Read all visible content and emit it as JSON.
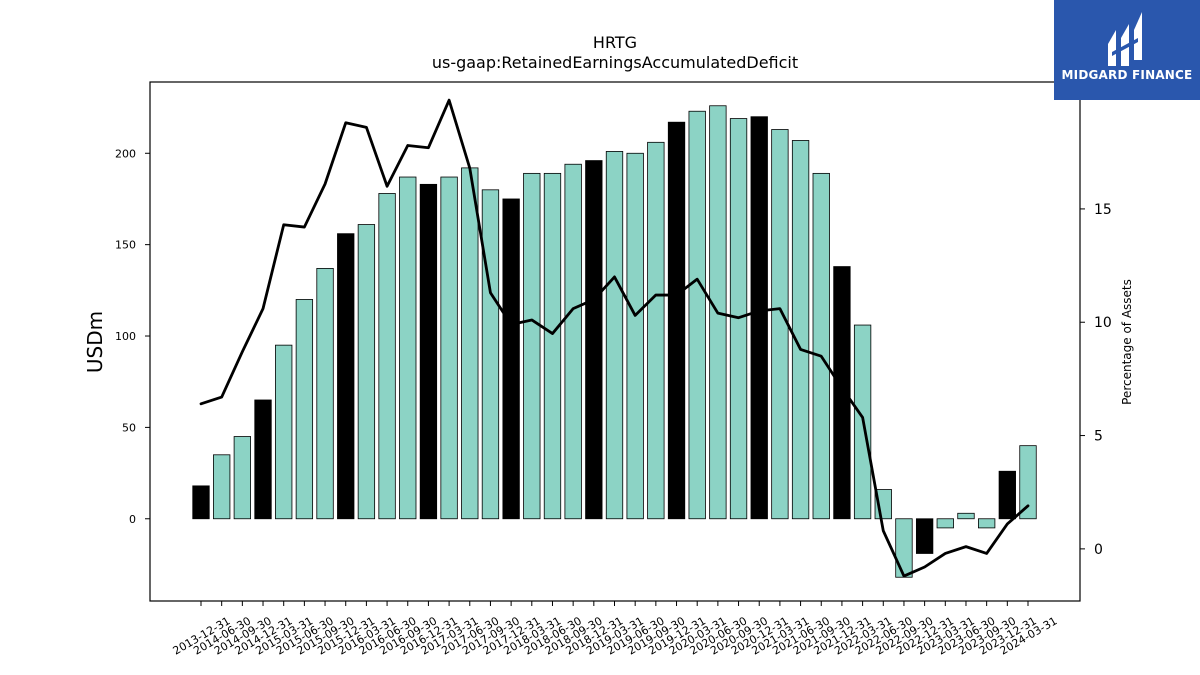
{
  "logo": {
    "text": "MIDGARD FINANCE"
  },
  "colors": {
    "bar": "#8cd3c5",
    "highlight": "#000000",
    "line": "#000000"
  },
  "chart_data": {
    "type": "bar",
    "title": "HRTG",
    "subtitle": "us-gaap:RetainedEarningsAccumulatedDeficit",
    "ylabel": "USDm",
    "y2label": "Percentage of Assets",
    "ylim": [
      -45,
      239
    ],
    "y2lim": [
      -2.3,
      20.6
    ],
    "yticks": [
      0,
      50,
      100,
      150,
      200
    ],
    "y2ticks": [
      0,
      5,
      10,
      15
    ],
    "categories": [
      "2013-12-31",
      "2014-06-30",
      "2014-09-30",
      "2014-12-31",
      "2015-03-31",
      "2015-06-30",
      "2015-09-30",
      "2015-12-31",
      "2016-03-31",
      "2016-06-30",
      "2016-09-30",
      "2016-12-31",
      "2017-03-31",
      "2017-06-30",
      "2017-09-30",
      "2017-12-31",
      "2018-03-31",
      "2018-06-30",
      "2018-09-30",
      "2018-12-31",
      "2019-03-31",
      "2019-06-30",
      "2019-09-30",
      "2019-12-31",
      "2020-03-31",
      "2020-06-30",
      "2020-09-30",
      "2020-12-31",
      "2021-03-31",
      "2021-06-30",
      "2021-09-30",
      "2021-12-31",
      "2022-03-31",
      "2022-06-30",
      "2022-09-30",
      "2022-12-31",
      "2023-03-31",
      "2023-06-30",
      "2023-09-30",
      "2023-12-31",
      "2024-03-31"
    ],
    "series": [
      {
        "values": [
          18,
          35,
          45,
          65,
          95,
          120,
          137,
          156,
          161,
          178,
          187,
          183,
          187,
          192,
          180,
          175,
          189,
          189,
          194,
          196,
          201,
          200,
          206,
          217,
          223,
          226,
          219,
          220,
          213,
          207,
          189,
          138,
          106,
          16,
          -32,
          -19,
          -5,
          3,
          -5,
          26,
          40
        ],
        "highlight": [
          true,
          false,
          false,
          true,
          false,
          false,
          false,
          true,
          false,
          false,
          false,
          true,
          false,
          false,
          false,
          true,
          false,
          false,
          false,
          true,
          false,
          false,
          false,
          true,
          false,
          false,
          false,
          true,
          false,
          false,
          false,
          true,
          false,
          false,
          false,
          true,
          false,
          false,
          false,
          true,
          false
        ]
      },
      {
        "axis": "right",
        "values": [
          6.4,
          6.7,
          8.7,
          10.6,
          14.3,
          14.2,
          16.1,
          18.8,
          18.6,
          16.0,
          17.8,
          17.7,
          19.8,
          16.8,
          11.3,
          9.9,
          10.1,
          9.5,
          10.6,
          11.0,
          12.0,
          10.3,
          11.2,
          11.2,
          11.9,
          10.4,
          10.2,
          10.5,
          10.6,
          8.8,
          8.5,
          7.1,
          5.8,
          0.8,
          -1.2,
          -0.8,
          -0.2,
          0.1,
          -0.2,
          1.1,
          1.9
        ]
      }
    ],
    "legend": "none",
    "grid": false
  }
}
